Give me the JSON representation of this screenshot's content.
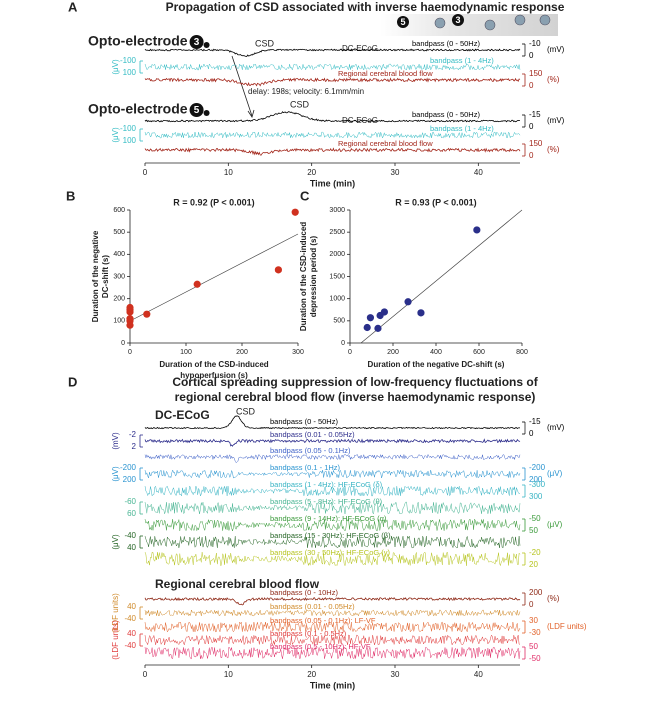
{
  "chart_data": [
    {
      "type": "trace",
      "label": "A",
      "title": "Propagation of CSD associated with inverse haemodynamic response",
      "photo_labels": [
        "5",
        "3"
      ],
      "groups": [
        {
          "title": "Opto-electrode",
          "electrode": "3",
          "annotations": [
            "CSD",
            "DC-ECoG",
            "delay: 198s; velocity: 6.1mm/min"
          ],
          "traces": [
            {
              "name": "bandpass (0 - 50Hz)",
              "color": "#000000",
              "scales": [
                {
                  "side": "right",
                  "ticks": [
                    -10,
                    0
                  ],
                  "unit": "(mV)"
                }
              ]
            },
            {
              "name": "bandpass (1 - 4Hz)",
              "color": "#35bcc4",
              "scales": [
                {
                  "side": "left",
                  "ticks": [
                    -100,
                    100
                  ],
                  "unit": "(μV)"
                }
              ]
            },
            {
              "name": "Regional cerebral blood flow",
              "color": "#a3261a",
              "scales": [
                {
                  "side": "right",
                  "ticks": [
                    150,
                    0
                  ],
                  "unit": "(%)"
                }
              ]
            }
          ]
        },
        {
          "title": "Opto-electrode",
          "electrode": "5",
          "annotations": [
            "CSD",
            "DC-ECoG"
          ],
          "traces": [
            {
              "name": "bandpass (0 - 50Hz)",
              "color": "#000000",
              "scales": [
                {
                  "side": "right",
                  "ticks": [
                    -15,
                    0
                  ],
                  "unit": "(mV)"
                }
              ]
            },
            {
              "name": "bandpass (1 - 4Hz)",
              "color": "#35bcc4",
              "scales": [
                {
                  "side": "left",
                  "ticks": [
                    -100,
                    100
                  ],
                  "unit": "(μV)"
                }
              ]
            },
            {
              "name": "Regional cerebral blood flow",
              "color": "#a3261a",
              "scales": [
                {
                  "side": "right",
                  "ticks": [
                    150,
                    0
                  ],
                  "unit": "(%)"
                }
              ]
            }
          ]
        }
      ],
      "xlabel": "Time (min)",
      "xlim": [
        0,
        45
      ],
      "xticks": [
        0,
        10,
        20,
        30,
        40
      ]
    },
    {
      "type": "scatter",
      "label": "B",
      "annotation": "R = 0.92 (P < 0.001)",
      "xlabel": [
        "Duration of the CSD-induced",
        "hypoperfusion (s)"
      ],
      "ylabel": [
        "Duration of the negative",
        "DC-shift (s)"
      ],
      "x": [
        0,
        0,
        0,
        0,
        0,
        0,
        30,
        120,
        265,
        295
      ],
      "values": [
        80,
        100,
        110,
        140,
        150,
        160,
        130,
        265,
        330,
        590
      ],
      "color": "#d0311f",
      "xlim": [
        0,
        300
      ],
      "ylim": [
        0,
        600
      ],
      "xticks": [
        0,
        100,
        200,
        300
      ],
      "yticks": [
        0,
        100,
        200,
        300,
        400,
        500,
        600
      ]
    },
    {
      "type": "scatter",
      "label": "C",
      "annotation": "R = 0.93 (P < 0.001)",
      "xlabel": [
        "Duration of the negative DC-shift (s)"
      ],
      "ylabel": [
        "Duration of the CSD-induced",
        "depression period (s)"
      ],
      "x": [
        80,
        95,
        130,
        140,
        160,
        270,
        330,
        590
      ],
      "values": [
        350,
        570,
        330,
        620,
        700,
        930,
        680,
        2550
      ],
      "color": "#2a2f8a",
      "xlim": [
        0,
        800
      ],
      "ylim": [
        0,
        3000
      ],
      "xticks": [
        0,
        200,
        400,
        600,
        800
      ],
      "yticks": [
        0,
        500,
        1000,
        1500,
        2000,
        2500,
        3000
      ]
    },
    {
      "type": "trace",
      "label": "D",
      "title": [
        "Cortical spreading suppression of low-frequency fluctuations of",
        "regional cerebral blood flow (inverse haemodynamic response)"
      ],
      "groups": [
        {
          "title": "DC-ECoG",
          "annotations": [
            "CSD"
          ],
          "traces": [
            {
              "name": "bandpass (0 - 50Hz)",
              "color": "#000000",
              "scales": [
                {
                  "side": "right",
                  "ticks": [
                    -15,
                    0
                  ],
                  "unit": "(mV)"
                }
              ]
            },
            {
              "name": "bandpass (0.01 - 0.05Hz)",
              "color": "#2e2e8c",
              "scales": [
                {
                  "side": "left",
                  "ticks": [
                    -2,
                    2
                  ],
                  "unit": "(mV)"
                }
              ]
            },
            {
              "name": "bandpass (0.05 - 0.1Hz)",
              "color": "#3f62c8",
              "scales": []
            },
            {
              "name": "bandpass (0.1 - 1Hz)",
              "color": "#2a94d0",
              "scales": [
                {
                  "side": "left",
                  "ticks": [
                    -200,
                    200
                  ],
                  "unit": "(μV)"
                },
                {
                  "side": "right",
                  "ticks": [
                    -200,
                    200
                  ],
                  "unit": "(μV)"
                }
              ]
            },
            {
              "name": "bandpass (1 - 4Hz): HF-ECoG (δ)",
              "color": "#38b4c4",
              "scales": [
                {
                  "side": "right",
                  "ticks": [
                    -300,
                    300
                  ]
                }
              ]
            },
            {
              "name": "bandpass (5 - 8Hz): HF-ECoG (θ)",
              "color": "#49b594",
              "scales": [
                {
                  "side": "left",
                  "ticks": [
                    -60,
                    60
                  ]
                }
              ]
            },
            {
              "name": "bandpass (9 - 14Hz): HF-ECoG (α)",
              "color": "#3a9a3a",
              "scales": [
                {
                  "side": "right",
                  "ticks": [
                    -50,
                    50
                  ],
                  "unit": "(μV)"
                }
              ]
            },
            {
              "name": "bandpass (15 - 30Hz): HF-ECoG (β)",
              "color": "#276627",
              "scales": [
                {
                  "side": "left",
                  "ticks": [
                    -40,
                    40
                  ],
                  "unit": "(μV)"
                }
              ]
            },
            {
              "name": "bandpass (30 - 50Hz): HF-ECoG (γ)",
              "color": "#b6c41e",
              "scales": [
                {
                  "side": "right",
                  "ticks": [
                    -20,
                    20
                  ]
                }
              ]
            }
          ]
        },
        {
          "title": "Regional cerebral blood flow",
          "traces": [
            {
              "name": "bandpass (0 - 10Hz)",
              "color": "#8f2a18",
              "scales": [
                {
                  "side": "right",
                  "ticks": [
                    200,
                    0
                  ],
                  "unit": "(%)"
                }
              ]
            },
            {
              "name": "bandpass (0.01 - 0.05Hz)",
              "color": "#d08a2a",
              "scales": [
                {
                  "side": "left",
                  "ticks": [
                    40,
                    -40
                  ],
                  "unit": "(LDF units)"
                }
              ]
            },
            {
              "name": "bandpass (0.05 - 0.1Hz): LF-VF",
              "color": "#e2622a",
              "scales": [
                {
                  "side": "right",
                  "ticks": [
                    30,
                    -30
                  ],
                  "unit": "(LDF units)"
                }
              ]
            },
            {
              "name": "bandpass (0.1 - 0.5Hz)",
              "color": "#e03c3c",
              "scales": [
                {
                  "side": "left",
                  "ticks": [
                    40,
                    -40
                  ],
                  "unit": "(LDF units)"
                }
              ]
            },
            {
              "name": "bandpass (0.5 - 10Hz): HF-VF",
              "color": "#e02d68",
              "scales": [
                {
                  "side": "right",
                  "ticks": [
                    50,
                    -50
                  ]
                }
              ]
            }
          ]
        }
      ],
      "xlabel": "Time (min)",
      "xlim": [
        0,
        45
      ],
      "xticks": [
        0,
        10,
        20,
        30,
        40
      ]
    }
  ]
}
